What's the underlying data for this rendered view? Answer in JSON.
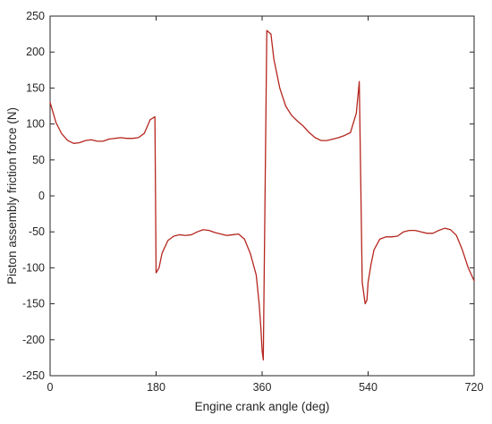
{
  "chart_data": {
    "type": "line",
    "title": "",
    "xlabel": "Engine crank angle (deg)",
    "ylabel": "Piston assembly friction force (N)",
    "xlim": [
      0,
      720
    ],
    "ylim": [
      -250,
      250
    ],
    "xticks": [
      0,
      180,
      360,
      540,
      720
    ],
    "yticks": [
      -250,
      -200,
      -150,
      -100,
      -50,
      0,
      50,
      100,
      150,
      200,
      250
    ],
    "grid": false,
    "legend": "none",
    "series": [
      {
        "color": "#b5261e",
        "x": [
          0,
          10,
          20,
          30,
          40,
          50,
          60,
          70,
          80,
          90,
          100,
          110,
          120,
          130,
          140,
          150,
          160,
          170,
          178,
          180,
          185,
          190,
          200,
          210,
          220,
          230,
          240,
          250,
          260,
          270,
          280,
          290,
          300,
          310,
          320,
          330,
          340,
          350,
          355,
          358,
          360,
          362,
          368,
          375,
          380,
          390,
          400,
          410,
          420,
          430,
          440,
          450,
          460,
          470,
          480,
          490,
          500,
          510,
          520,
          525,
          530,
          535,
          538,
          540,
          545,
          550,
          560,
          570,
          580,
          590,
          600,
          610,
          620,
          630,
          640,
          650,
          660,
          670,
          680,
          690,
          700,
          710,
          720
        ],
        "y": [
          130,
          102,
          86,
          77,
          73,
          74,
          77,
          78,
          76,
          76,
          79,
          80,
          81,
          80,
          80,
          81,
          87,
          106,
          110,
          -107,
          -100,
          -80,
          -62,
          -56,
          -54,
          -55,
          -54,
          -50,
          -47,
          -48,
          -51,
          -53,
          -55,
          -54,
          -53,
          -60,
          -80,
          -110,
          -150,
          -185,
          -215,
          -228,
          230,
          225,
          190,
          150,
          125,
          112,
          104,
          97,
          88,
          81,
          77,
          77,
          79,
          81,
          84,
          88,
          115,
          159,
          -120,
          -150,
          -145,
          -120,
          -95,
          -75,
          -60,
          -57,
          -57,
          -56,
          -50,
          -48,
          -48,
          -50,
          -52,
          -52,
          -48,
          -45,
          -47,
          -55,
          -75,
          -100,
          -118
        ]
      }
    ]
  }
}
